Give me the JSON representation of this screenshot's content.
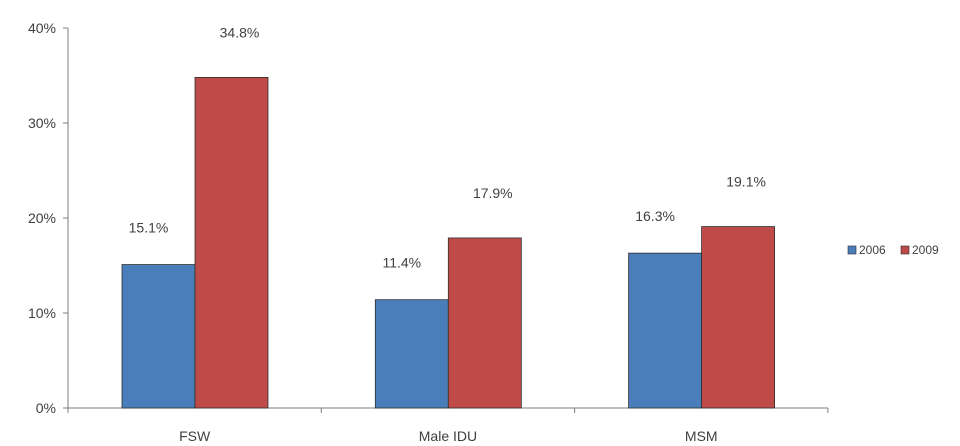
{
  "chart_data": {
    "type": "bar",
    "categories": [
      "FSW",
      "Male IDU",
      "MSM"
    ],
    "series": [
      {
        "name": "2006",
        "values": [
          15.1,
          11.4,
          16.3
        ],
        "labels": [
          "15.1%",
          "11.4%",
          "16.3%"
        ],
        "color": "#4a7ebb"
      },
      {
        "name": "2009",
        "values": [
          34.8,
          17.9,
          19.1
        ],
        "labels": [
          "34.8%",
          "17.9%",
          "19.1%"
        ],
        "color": "#be4b48"
      }
    ],
    "yticks": [
      {
        "value": 0,
        "label": "0%"
      },
      {
        "value": 10,
        "label": "10%"
      },
      {
        "value": 20,
        "label": "20%"
      },
      {
        "value": 30,
        "label": "30%"
      },
      {
        "value": 40,
        "label": "40%"
      }
    ],
    "ylim": [
      0,
      40
    ],
    "title": "",
    "xlabel": "",
    "ylabel": "",
    "grid": false,
    "legend_position": "right"
  }
}
